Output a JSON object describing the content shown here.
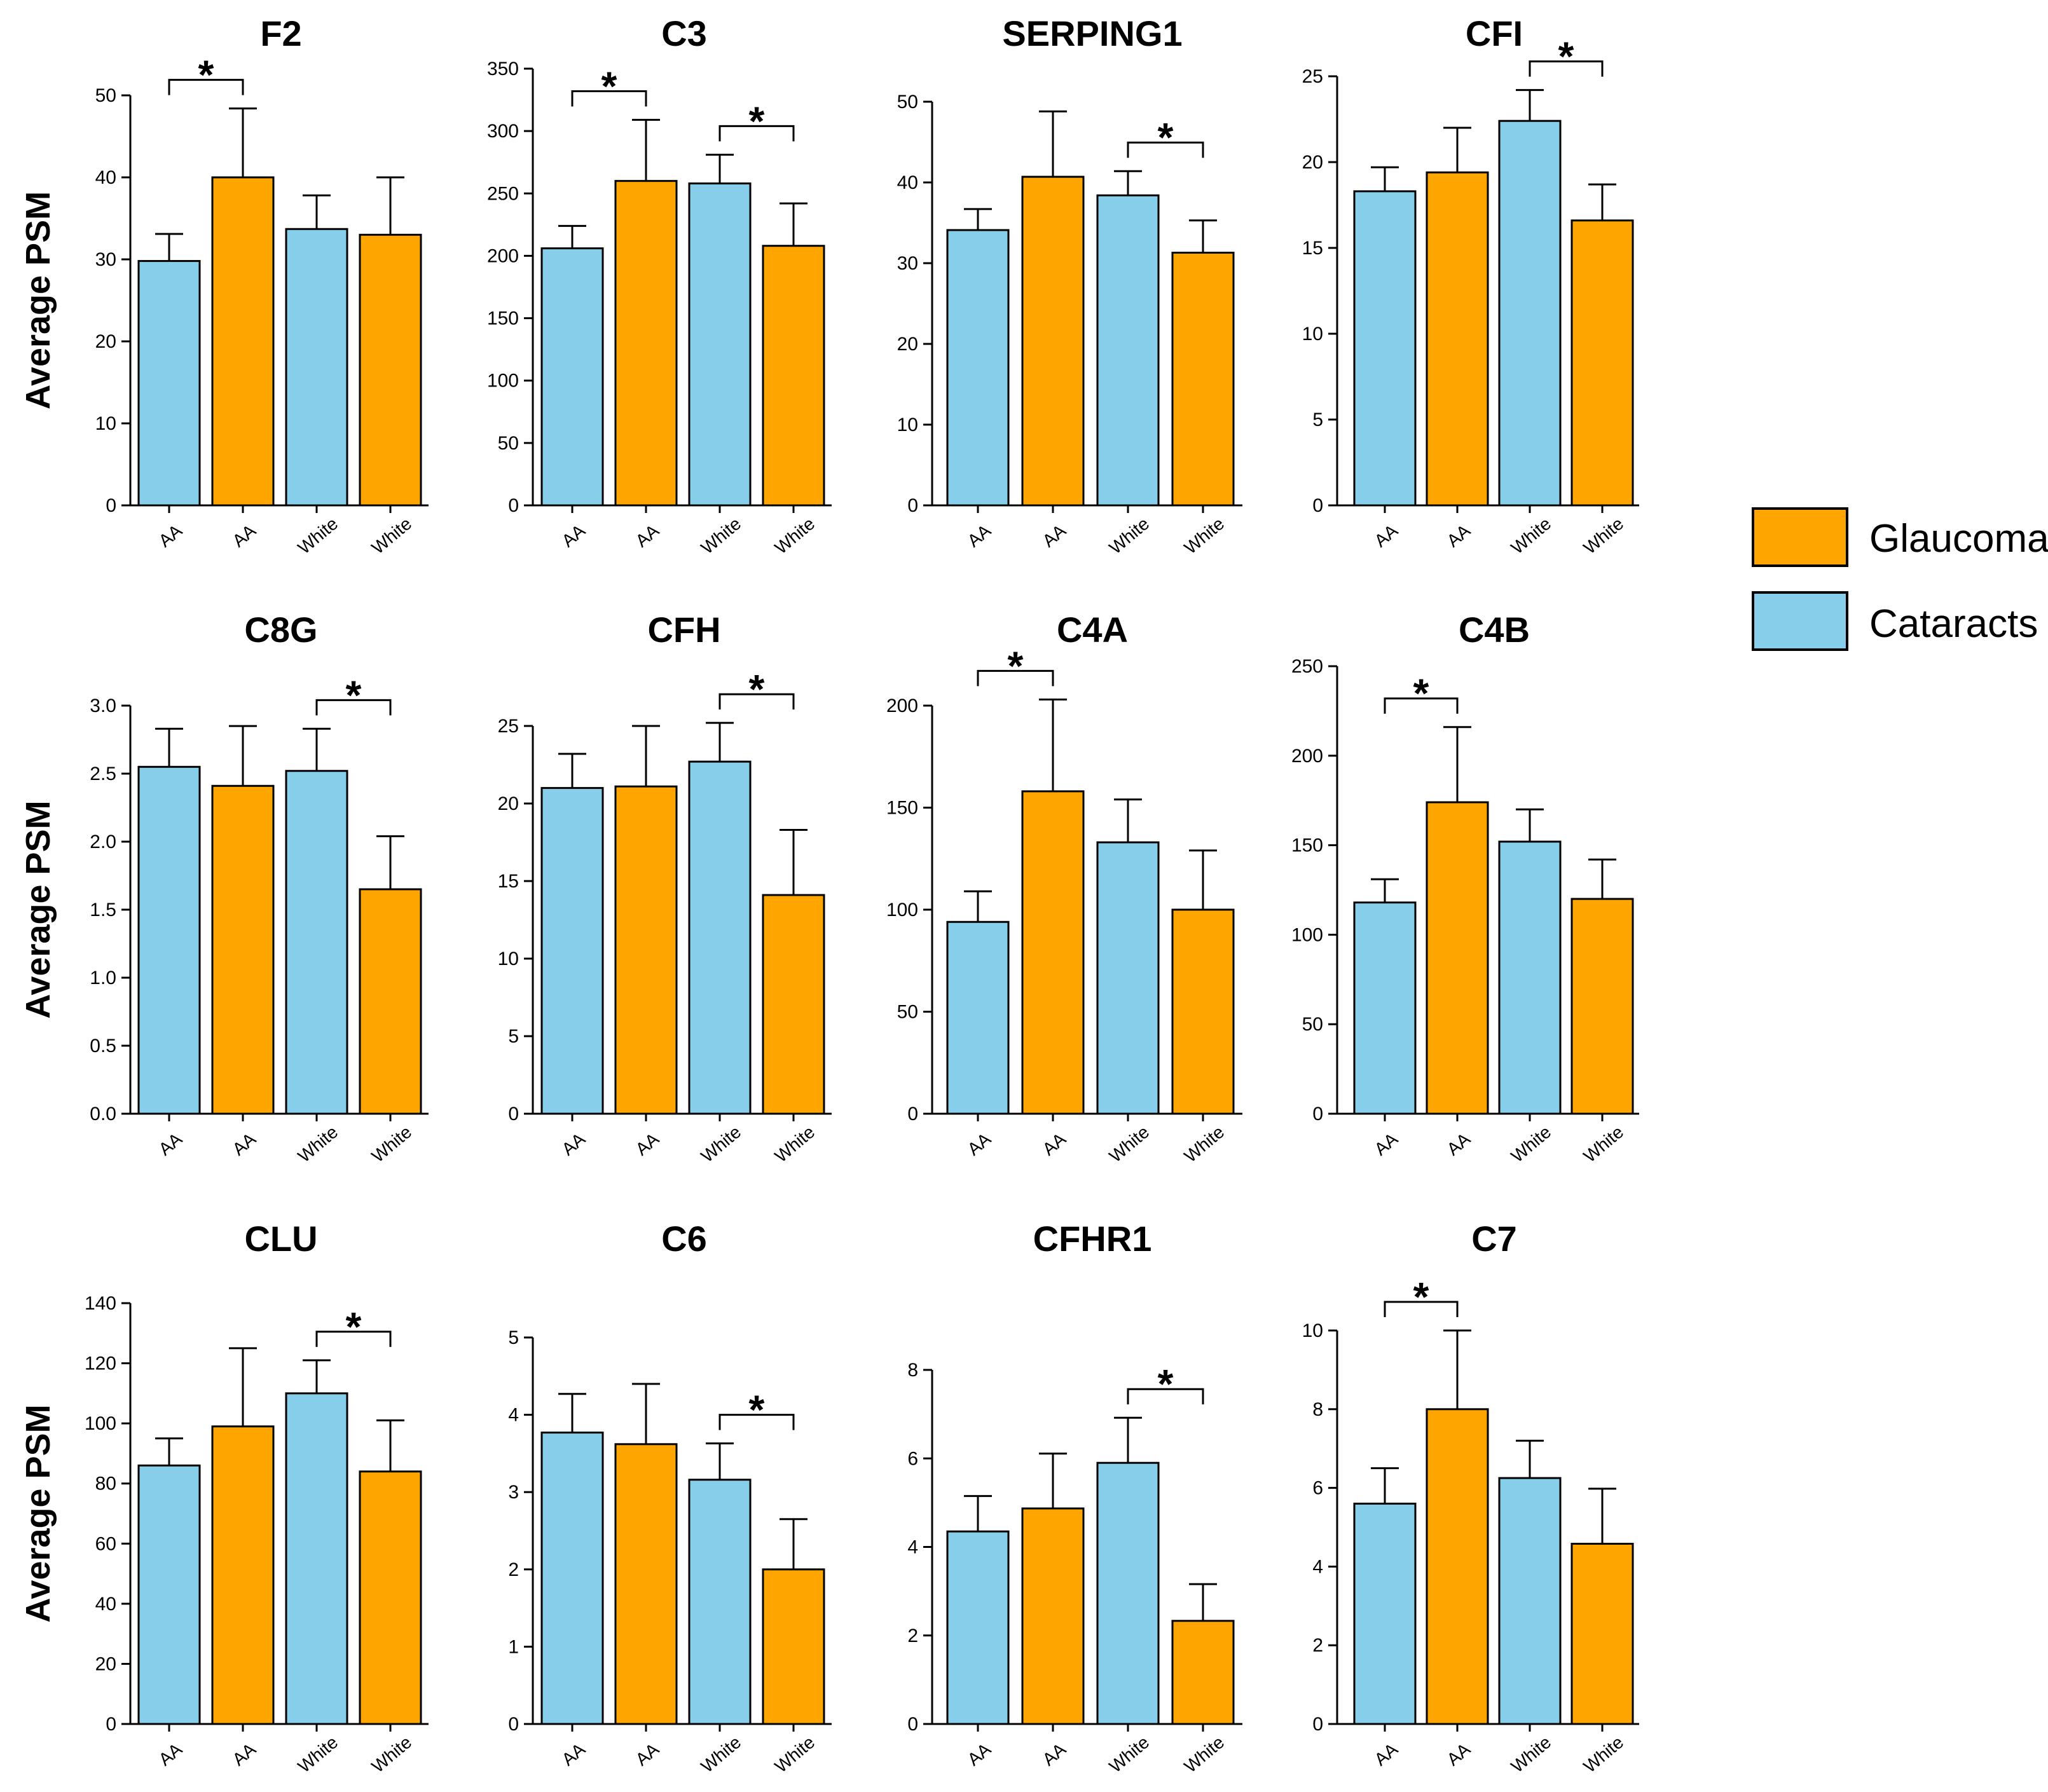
{
  "colors": {
    "Glaucoma": "#FFA500",
    "Cataracts": "#87CEEB",
    "stroke": "#000000"
  },
  "legend": {
    "items": [
      {
        "label": "Glaucoma",
        "key": "Glaucoma"
      },
      {
        "label": "Cataracts",
        "key": "Cataracts"
      }
    ]
  },
  "chart_data": [
    {
      "type": "bar",
      "title": "F2",
      "ylabel": "Average PSM",
      "ylim": [
        0,
        50
      ],
      "yticks": [
        0,
        10,
        20,
        30,
        40,
        50
      ],
      "tick_decimals": 0,
      "categories": [
        "AA",
        "AA",
        "White",
        "White"
      ],
      "groups": [
        "Cataracts",
        "Glaucoma",
        "Cataracts",
        "Glaucoma"
      ],
      "values": [
        29.8,
        40.0,
        33.7,
        33.0
      ],
      "errors": [
        3.3,
        8.4,
        4.1,
        7.0
      ],
      "significance": [
        [
          0,
          1
        ]
      ]
    },
    {
      "type": "bar",
      "title": "C3",
      "ylabel": "",
      "ylim": [
        0,
        350
      ],
      "yticks": [
        0,
        50,
        100,
        150,
        200,
        250,
        300,
        350
      ],
      "tick_decimals": 0,
      "categories": [
        "AA",
        "AA",
        "White",
        "White"
      ],
      "groups": [
        "Cataracts",
        "Glaucoma",
        "Cataracts",
        "Glaucoma"
      ],
      "values": [
        206,
        260,
        258,
        208
      ],
      "errors": [
        18,
        49,
        23,
        34
      ],
      "significance": [
        [
          0,
          1
        ],
        [
          2,
          3
        ]
      ]
    },
    {
      "type": "bar",
      "title": "SERPING1",
      "ylabel": "",
      "ylim": [
        0,
        50
      ],
      "yticks": [
        0,
        10,
        20,
        30,
        40,
        50
      ],
      "tick_decimals": 0,
      "categories": [
        "AA",
        "AA",
        "White",
        "White"
      ],
      "groups": [
        "Cataracts",
        "Glaucoma",
        "Cataracts",
        "Glaucoma"
      ],
      "values": [
        34.1,
        40.7,
        38.4,
        31.3
      ],
      "errors": [
        2.6,
        8.1,
        3.0,
        4.0
      ],
      "significance": [
        [
          2,
          3
        ]
      ]
    },
    {
      "type": "bar",
      "title": "CFI",
      "ylabel": "",
      "ylim": [
        0,
        25
      ],
      "yticks": [
        0,
        5,
        10,
        15,
        20,
        25
      ],
      "tick_decimals": 0,
      "categories": [
        "AA",
        "AA",
        "White",
        "White"
      ],
      "groups": [
        "Cataracts",
        "Glaucoma",
        "Cataracts",
        "Glaucoma"
      ],
      "values": [
        18.3,
        19.4,
        22.4,
        16.6
      ],
      "errors": [
        1.4,
        2.6,
        1.8,
        2.1
      ],
      "significance": [
        [
          2,
          3
        ]
      ]
    },
    {
      "type": "bar",
      "title": "C8G",
      "ylabel": "Average PSM",
      "ylim": [
        0,
        3.0
      ],
      "yticks": [
        0,
        0.5,
        1.0,
        1.5,
        2.0,
        2.5,
        3.0
      ],
      "tick_decimals": 1,
      "categories": [
        "AA",
        "AA",
        "White",
        "White"
      ],
      "groups": [
        "Cataracts",
        "Glaucoma",
        "Cataracts",
        "Glaucoma"
      ],
      "values": [
        2.55,
        2.41,
        2.52,
        1.65
      ],
      "errors": [
        0.28,
        0.44,
        0.31,
        0.39
      ],
      "significance": [
        [
          2,
          3
        ]
      ]
    },
    {
      "type": "bar",
      "title": "CFH",
      "ylabel": "",
      "ylim": [
        0,
        25
      ],
      "yticks": [
        0,
        5,
        10,
        15,
        20,
        25
      ],
      "tick_decimals": 0,
      "categories": [
        "AA",
        "AA",
        "White",
        "White"
      ],
      "groups": [
        "Cataracts",
        "Glaucoma",
        "Cataracts",
        "Glaucoma"
      ],
      "values": [
        21.0,
        21.1,
        22.7,
        14.1
      ],
      "errors": [
        2.2,
        3.9,
        2.5,
        4.2
      ],
      "significance": [
        [
          2,
          3
        ]
      ]
    },
    {
      "type": "bar",
      "title": "C4A",
      "ylabel": "",
      "ylim": [
        0,
        200
      ],
      "yticks": [
        0,
        50,
        100,
        150,
        200
      ],
      "tick_decimals": 0,
      "categories": [
        "AA",
        "AA",
        "White",
        "White"
      ],
      "groups": [
        "Cataracts",
        "Glaucoma",
        "Cataracts",
        "Glaucoma"
      ],
      "values": [
        94,
        158,
        133,
        100
      ],
      "errors": [
        15,
        45,
        21,
        29
      ],
      "significance": [
        [
          0,
          1
        ]
      ]
    },
    {
      "type": "bar",
      "title": "C4B",
      "ylabel": "",
      "ylim": [
        0,
        250
      ],
      "yticks": [
        0,
        50,
        100,
        150,
        200,
        250
      ],
      "tick_decimals": 0,
      "categories": [
        "AA",
        "AA",
        "White",
        "White"
      ],
      "groups": [
        "Cataracts",
        "Glaucoma",
        "Cataracts",
        "Glaucoma"
      ],
      "values": [
        118,
        174,
        152,
        120
      ],
      "errors": [
        13,
        42,
        18,
        22
      ],
      "significance": [
        [
          0,
          1
        ]
      ]
    },
    {
      "type": "bar",
      "title": "CLU",
      "ylabel": "Average PSM",
      "ylim": [
        0,
        140
      ],
      "yticks": [
        0,
        20,
        40,
        60,
        80,
        100,
        120,
        140
      ],
      "tick_decimals": 0,
      "categories": [
        "AA",
        "AA",
        "White",
        "White"
      ],
      "groups": [
        "Cataracts",
        "Glaucoma",
        "Cataracts",
        "Glaucoma"
      ],
      "values": [
        86,
        99,
        110,
        84
      ],
      "errors": [
        9,
        26,
        11,
        17
      ],
      "significance": [
        [
          2,
          3
        ]
      ]
    },
    {
      "type": "bar",
      "title": "C6",
      "ylabel": "",
      "ylim": [
        0,
        5
      ],
      "yticks": [
        0,
        1,
        2,
        3,
        4,
        5
      ],
      "tick_decimals": 0,
      "categories": [
        "AA",
        "AA",
        "White",
        "White"
      ],
      "groups": [
        "Cataracts",
        "Glaucoma",
        "Cataracts",
        "Glaucoma"
      ],
      "values": [
        3.77,
        3.62,
        3.16,
        2.0
      ],
      "errors": [
        0.5,
        0.78,
        0.47,
        0.65
      ],
      "significance": [
        [
          2,
          3
        ]
      ]
    },
    {
      "type": "bar",
      "title": "CFHR1",
      "ylabel": "",
      "ylim": [
        0,
        8
      ],
      "yticks": [
        0,
        2,
        4,
        6,
        8
      ],
      "tick_decimals": 0,
      "categories": [
        "AA",
        "AA",
        "White",
        "White"
      ],
      "groups": [
        "Cataracts",
        "Glaucoma",
        "Cataracts",
        "Glaucoma"
      ],
      "values": [
        4.35,
        4.87,
        5.9,
        2.33
      ],
      "errors": [
        0.8,
        1.24,
        1.02,
        0.83
      ],
      "significance": [
        [
          2,
          3
        ]
      ]
    },
    {
      "type": "bar",
      "title": "C7",
      "ylabel": "",
      "ylim": [
        0,
        10
      ],
      "yticks": [
        0,
        2,
        4,
        6,
        8,
        10
      ],
      "tick_decimals": 0,
      "categories": [
        "AA",
        "AA",
        "White",
        "White"
      ],
      "groups": [
        "Cataracts",
        "Glaucoma",
        "Cataracts",
        "Glaucoma"
      ],
      "values": [
        5.6,
        8.0,
        6.25,
        4.58
      ],
      "errors": [
        0.9,
        2.0,
        0.95,
        1.4
      ],
      "significance": [
        [
          0,
          1
        ]
      ]
    }
  ]
}
